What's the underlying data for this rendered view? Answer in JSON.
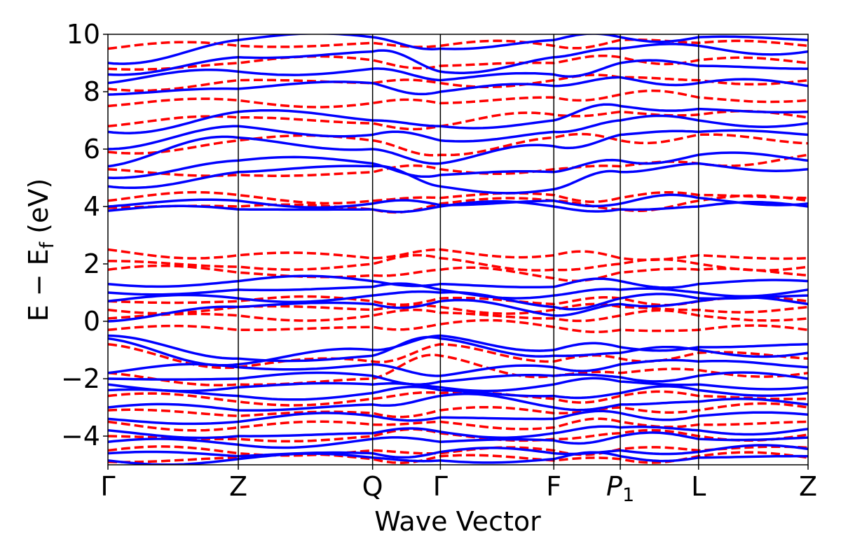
{
  "chart_data": {
    "type": "line",
    "title": "",
    "xlabel": "Wave Vector",
    "ylabel": {
      "main": "E − E",
      "subscript": "f",
      "unit": " (eV)"
    },
    "ylim": [
      -5,
      10
    ],
    "yticks": [
      -4,
      -2,
      0,
      2,
      4,
      6,
      8,
      10
    ],
    "ytick_labels": [
      "−4",
      "−2",
      "0",
      "2",
      "4",
      "6",
      "8",
      "10"
    ],
    "kpath": {
      "positions": [
        0,
        1.0,
        2.03,
        2.55,
        3.42,
        3.93,
        4.53,
        5.37
      ],
      "labels": [
        "Γ",
        "Z",
        "Q",
        "Γ",
        "F",
        "P",
        "L",
        "Z"
      ],
      "label_subscripts": [
        "",
        "",
        "",
        "",
        "",
        "1",
        "",
        ""
      ],
      "label_italic": [
        false,
        false,
        false,
        false,
        false,
        true,
        false,
        false
      ]
    },
    "xlim": [
      0,
      5.37
    ],
    "grid": false,
    "legend": "none",
    "series": [
      {
        "style": "solid",
        "color": "#0000ff",
        "values": "knot energies (eV) at the 8 k-points; dense band set, approximate",
        "bands": [
          [
            -4.85,
            -4.8,
            -4.75,
            -4.85,
            -4.8,
            -4.7,
            -4.75,
            -4.7
          ],
          [
            -4.6,
            -4.7,
            -4.6,
            -4.55,
            -4.6,
            -4.5,
            -4.55,
            -4.45
          ],
          [
            -4.2,
            -4.3,
            -4.1,
            -4.2,
            -4.15,
            -4.0,
            -4.1,
            -4.05
          ],
          [
            -3.8,
            -4.0,
            -3.9,
            -3.85,
            -3.9,
            -3.7,
            -3.8,
            -3.75
          ],
          [
            -3.4,
            -3.5,
            -3.3,
            -3.35,
            -3.4,
            -3.2,
            -3.3,
            -3.25
          ],
          [
            -3.0,
            -3.1,
            -2.9,
            -2.6,
            -3.0,
            -2.9,
            -2.8,
            -2.9
          ],
          [
            -2.4,
            -2.6,
            -2.5,
            -2.4,
            -2.6,
            -2.5,
            -2.4,
            -2.5
          ],
          [
            -2.2,
            -2.3,
            -2.2,
            -2.3,
            -2.2,
            -2.1,
            -2.2,
            -2.3
          ],
          [
            -2.0,
            -2.0,
            -1.9,
            -2.1,
            -1.9,
            -1.95,
            -1.9,
            -2.0
          ],
          [
            -1.8,
            -1.6,
            -1.5,
            -1.9,
            -1.6,
            -1.5,
            -1.4,
            -1.6
          ],
          [
            -0.5,
            -1.3,
            -1.2,
            -0.6,
            -1.2,
            -1.1,
            -1.0,
            -1.1
          ],
          [
            -0.6,
            -1.5,
            -1.0,
            -0.5,
            -1.0,
            -0.9,
            -0.9,
            -0.8
          ],
          [
            0.0,
            0.5,
            0.6,
            0.7,
            0.2,
            0.6,
            0.7,
            0.6
          ],
          [
            0.7,
            0.8,
            0.9,
            1.0,
            0.5,
            0.8,
            0.8,
            0.9
          ],
          [
            1.0,
            1.1,
            1.2,
            1.1,
            0.9,
            1.1,
            1.0,
            1.1
          ],
          [
            1.3,
            1.4,
            1.4,
            1.3,
            1.2,
            1.4,
            1.3,
            1.4
          ],
          [
            3.85,
            3.9,
            3.9,
            4.0,
            4.0,
            3.9,
            4.0,
            4.0
          ],
          [
            4.0,
            4.2,
            4.1,
            4.05,
            4.2,
            4.1,
            4.3,
            4.1
          ],
          [
            4.7,
            5.2,
            5.4,
            4.7,
            4.6,
            5.2,
            5.5,
            5.3
          ],
          [
            5.0,
            5.6,
            5.5,
            5.1,
            5.2,
            5.6,
            5.8,
            5.6
          ],
          [
            5.4,
            6.4,
            6.0,
            5.5,
            6.1,
            6.5,
            6.6,
            6.5
          ],
          [
            6.0,
            6.8,
            6.5,
            6.3,
            6.6,
            7.0,
            7.0,
            6.9
          ],
          [
            6.6,
            7.3,
            7.0,
            6.8,
            7.0,
            7.5,
            7.4,
            7.3
          ],
          [
            7.9,
            8.1,
            8.3,
            8.0,
            8.2,
            8.5,
            8.3,
            8.2
          ],
          [
            8.3,
            8.7,
            8.8,
            8.4,
            8.6,
            9.0,
            8.9,
            8.8
          ],
          [
            8.6,
            9.2,
            9.4,
            8.7,
            9.2,
            9.5,
            9.6,
            9.4
          ],
          [
            9.0,
            9.8,
            9.9,
            9.5,
            9.8,
            9.9,
            9.9,
            9.8
          ]
        ]
      },
      {
        "style": "dashed",
        "color": "#ff0000",
        "values": "knot energies (eV) at the 8 k-points; dense band set, approximate",
        "bands": [
          [
            -4.9,
            -4.75,
            -4.8,
            -4.7,
            -4.85,
            -4.8,
            -4.7,
            -4.75
          ],
          [
            -4.5,
            -4.6,
            -4.5,
            -4.6,
            -4.5,
            -4.45,
            -4.5,
            -4.4
          ],
          [
            -4.0,
            -4.1,
            -4.0,
            -3.9,
            -4.1,
            -3.9,
            -4.0,
            -3.95
          ],
          [
            -3.5,
            -3.7,
            -3.6,
            -3.5,
            -3.7,
            -3.5,
            -3.6,
            -3.5
          ],
          [
            -3.1,
            -3.3,
            -3.2,
            -3.1,
            -3.2,
            -3.0,
            -3.1,
            -3.0
          ],
          [
            -2.6,
            -2.8,
            -2.7,
            -2.5,
            -2.7,
            -2.6,
            -2.6,
            -2.7
          ],
          [
            -1.8,
            -2.2,
            -2.0,
            -1.2,
            -1.9,
            -1.8,
            -1.7,
            -1.8
          ],
          [
            -0.8,
            -1.6,
            -1.4,
            -0.8,
            -1.4,
            -1.3,
            -1.1,
            -1.3
          ],
          [
            -0.3,
            -0.3,
            -0.2,
            -0.1,
            -0.2,
            -0.3,
            -0.3,
            -0.3
          ],
          [
            0.1,
            0.2,
            0.2,
            0.3,
            0.1,
            0.2,
            0.2,
            0.1
          ],
          [
            0.4,
            0.5,
            0.4,
            0.5,
            0.4,
            0.5,
            0.4,
            0.5
          ],
          [
            0.7,
            0.7,
            0.7,
            0.8,
            0.6,
            0.8,
            0.7,
            0.7
          ],
          [
            1.8,
            1.7,
            1.6,
            1.8,
            1.5,
            1.7,
            1.8,
            1.6
          ],
          [
            2.1,
            1.9,
            2.0,
            2.2,
            1.8,
            2.0,
            2.0,
            1.9
          ],
          [
            2.5,
            2.3,
            2.2,
            2.5,
            2.3,
            2.2,
            2.3,
            2.2
          ],
          [
            3.95,
            4.0,
            3.9,
            4.1,
            4.2,
            3.9,
            4.2,
            4.2
          ],
          [
            4.2,
            4.4,
            4.2,
            4.3,
            4.4,
            4.3,
            4.4,
            4.3
          ],
          [
            5.3,
            5.1,
            5.2,
            5.3,
            5.3,
            5.4,
            5.5,
            5.8
          ],
          [
            5.9,
            6.3,
            6.3,
            5.8,
            6.4,
            6.3,
            6.5,
            6.2
          ],
          [
            6.8,
            7.1,
            6.9,
            6.8,
            7.2,
            7.3,
            7.2,
            7.1
          ],
          [
            7.5,
            7.7,
            7.6,
            7.6,
            7.8,
            7.9,
            7.8,
            7.7
          ],
          [
            8.1,
            8.4,
            8.3,
            8.3,
            8.4,
            8.5,
            8.4,
            8.4
          ],
          [
            8.8,
            9.0,
            9.1,
            8.9,
            9.0,
            9.2,
            9.1,
            9.0
          ],
          [
            9.5,
            9.6,
            9.7,
            9.6,
            9.6,
            9.8,
            9.7,
            9.6
          ]
        ]
      }
    ]
  }
}
